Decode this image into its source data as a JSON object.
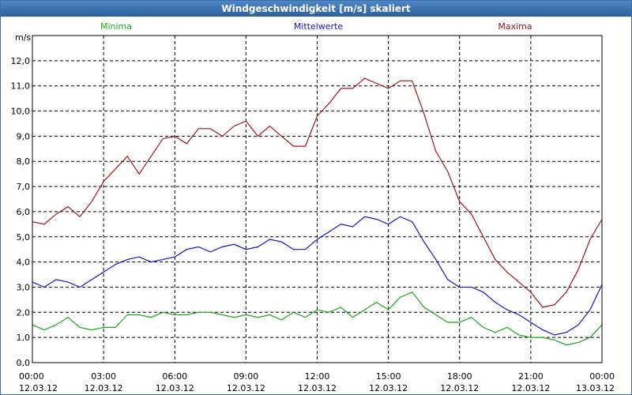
{
  "window": {
    "title": "Windgeschwindigkeit [m/s] skaliert"
  },
  "chart_data": {
    "type": "line",
    "title": "Windgeschwindigkeit [m/s] skaliert",
    "ylabel": "m/s",
    "ylim": [
      0,
      13
    ],
    "xlim_hours": [
      0,
      24
    ],
    "grid": true,
    "legend": "top",
    "y_ticks": [
      "0,0",
      "1,0",
      "2,0",
      "3,0",
      "4,0",
      "5,0",
      "6,0",
      "7,0",
      "8,0",
      "9,0",
      "10,0",
      "11,0",
      "12,0"
    ],
    "x_ticks": [
      {
        "time": "00:00",
        "date": "12.03.12"
      },
      {
        "time": "03:00",
        "date": "12.03.12"
      },
      {
        "time": "06:00",
        "date": "12.03.12"
      },
      {
        "time": "09:00",
        "date": "12.03.12"
      },
      {
        "time": "12:00",
        "date": "12.03.12"
      },
      {
        "time": "15:00",
        "date": "12.03.12"
      },
      {
        "time": "18:00",
        "date": "12.03.12"
      },
      {
        "time": "21:00",
        "date": "12.03.12"
      },
      {
        "time": "00:00",
        "date": "13.03.12"
      }
    ],
    "x": [
      0,
      0.5,
      1,
      1.5,
      2,
      2.5,
      3,
      3.5,
      4,
      4.5,
      5,
      5.5,
      6,
      6.5,
      7,
      7.5,
      8,
      8.5,
      9,
      9.5,
      10,
      10.5,
      11,
      11.5,
      12,
      12.5,
      13,
      13.5,
      14,
      14.5,
      15,
      15.5,
      16,
      16.5,
      17,
      17.5,
      18,
      18.5,
      19,
      19.5,
      20,
      20.5,
      21,
      21.5,
      22,
      22.5,
      23,
      23.5,
      24
    ],
    "series": [
      {
        "name": "Minima",
        "color": "#1aa81a",
        "values": [
          1.5,
          1.3,
          1.5,
          1.8,
          1.4,
          1.3,
          1.4,
          1.4,
          1.9,
          1.9,
          1.8,
          2.0,
          1.9,
          1.9,
          2.0,
          2.0,
          1.9,
          1.8,
          1.9,
          1.8,
          1.9,
          1.7,
          2.0,
          1.8,
          2.1,
          2.0,
          2.2,
          1.8,
          2.1,
          2.4,
          2.1,
          2.6,
          2.8,
          2.2,
          1.9,
          1.6,
          1.6,
          1.8,
          1.4,
          1.2,
          1.4,
          1.1,
          1.0,
          1.0,
          0.9,
          0.7,
          0.8,
          1.0,
          1.5
        ]
      },
      {
        "name": "Mittelwerte",
        "color": "#1515c8",
        "values": [
          3.2,
          3.0,
          3.3,
          3.2,
          3.0,
          3.3,
          3.6,
          3.9,
          4.1,
          4.2,
          4.0,
          4.1,
          4.2,
          4.5,
          4.6,
          4.4,
          4.6,
          4.7,
          4.5,
          4.6,
          4.9,
          4.8,
          4.5,
          4.5,
          4.9,
          5.2,
          5.5,
          5.4,
          5.8,
          5.7,
          5.5,
          5.8,
          5.6,
          4.8,
          4.1,
          3.3,
          3.0,
          3.0,
          2.8,
          2.4,
          2.1,
          1.9,
          1.6,
          1.3,
          1.1,
          1.2,
          1.5,
          2.1,
          3.1
        ]
      },
      {
        "name": "Maxima",
        "color": "#a01515",
        "values": [
          5.6,
          5.5,
          5.9,
          6.2,
          5.8,
          6.4,
          7.2,
          7.7,
          8.2,
          7.5,
          8.2,
          8.9,
          9.0,
          8.7,
          9.3,
          9.3,
          9.0,
          9.4,
          9.6,
          9.0,
          9.4,
          9.0,
          8.6,
          8.6,
          9.8,
          10.3,
          10.9,
          10.9,
          11.3,
          11.1,
          10.9,
          11.2,
          11.2,
          9.9,
          8.4,
          7.6,
          6.4,
          5.9,
          5.0,
          4.1,
          3.6,
          3.2,
          2.8,
          2.2,
          2.3,
          2.8,
          3.7,
          4.9,
          5.7
        ]
      }
    ]
  }
}
